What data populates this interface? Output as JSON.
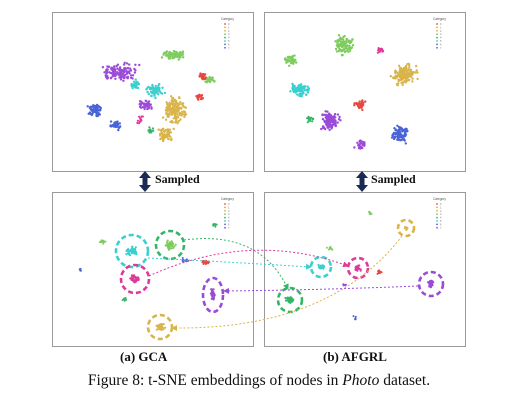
{
  "figure": {
    "sampled_label": "Sampled",
    "legend_title": "Category",
    "legend_categories": [
      "0",
      "1",
      "2",
      "3",
      "4",
      "5",
      "6",
      "7"
    ],
    "colors": {
      "c0": "#e8473f",
      "c1": "#e8a13a",
      "c2": "#d9b44a",
      "c3": "#7fcc5e",
      "c4": "#36b567",
      "c5": "#3ccfd0",
      "c6": "#4a64d6",
      "c7": "#9b4bd8",
      "c8": "#e0389a"
    },
    "arrow_color": "#1a2a55",
    "panels": [
      {
        "name": "gca",
        "sublabel": "(a) GCA"
      },
      {
        "name": "afgrl",
        "sublabel": "(b) AFGRL"
      }
    ]
  },
  "caption": {
    "prefix": "Figure 8: t-SNE embeddings of nodes in ",
    "italic": "Photo",
    "suffix": " dataset."
  }
}
